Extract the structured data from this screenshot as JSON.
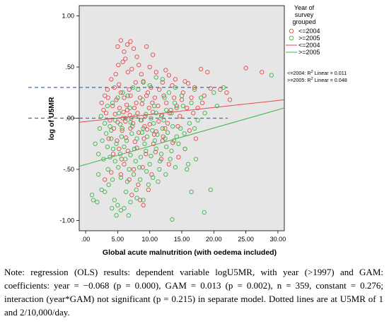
{
  "chart_data": {
    "type": "scatter",
    "xlabel": "Global acute malnutrition (with oedema included)",
    "ylabel": "log of U5MR",
    "xlim": [
      -1,
      31
    ],
    "ylim": [
      -1.1,
      1.1
    ],
    "x_ticks": [
      {
        "v": 0,
        "label": ".00"
      },
      {
        "v": 5,
        "label": "5.00"
      },
      {
        "v": 10,
        "label": "10.00"
      },
      {
        "v": 15,
        "label": "15.00"
      },
      {
        "v": 20,
        "label": "20.00"
      },
      {
        "v": 25,
        "label": "25.00"
      },
      {
        "v": 30,
        "label": "30.00"
      }
    ],
    "y_ticks": [
      {
        "v": 1,
        "label": "1.00"
      },
      {
        "v": 0.5,
        "label": ".50"
      },
      {
        "v": 0,
        "label": ".00"
      },
      {
        "v": -0.5,
        "label": "-.50"
      },
      {
        "v": -1,
        "label": "-1.00"
      }
    ],
    "legend": {
      "title": [
        "Year of",
        "survey",
        "grouped"
      ],
      "items": [
        {
          "label": "<=2004",
          "kind": "marker",
          "color": "#e8474c"
        },
        {
          "label": ">=2005",
          "kind": "marker",
          "color": "#3cb44b"
        },
        {
          "label": "<=2004",
          "kind": "line",
          "color": "#e8474c"
        },
        {
          "label": ">=2005",
          "kind": "line",
          "color": "#3cb44b"
        }
      ]
    },
    "annotations": {
      "r2_le2004": "<=2004: R",
      "r2_le2004_sup": "2",
      "r2_le2004_tail": " Linear = 0.011",
      "r2_ge2005": ">=2005: R",
      "r2_ge2005_sup": "2",
      "r2_ge2005_tail": " Linear = 0.048"
    },
    "reference_lines": [
      0.301,
      0.0
    ],
    "fit_lines": [
      {
        "name": "<=2004",
        "color": "#e8474c",
        "x": [
          -1,
          31
        ],
        "y": [
          -0.04,
          0.18
        ]
      },
      {
        "name": ">=2005",
        "color": "#3cb44b",
        "x": [
          -1,
          31
        ],
        "y": [
          -0.47,
          0.1
        ]
      }
    ],
    "series": [
      {
        "name": "<=2004",
        "color": "#e8474c",
        "points": [
          [
            5.5,
            0.76
          ],
          [
            7.0,
            0.75
          ],
          [
            6.5,
            0.72
          ],
          [
            5.0,
            0.7
          ],
          [
            7.5,
            0.68
          ],
          [
            6.0,
            0.65
          ],
          [
            9.5,
            0.7
          ],
          [
            10.5,
            0.62
          ],
          [
            8.0,
            0.6
          ],
          [
            6.2,
            0.58
          ],
          [
            5.8,
            0.55
          ],
          [
            8.3,
            0.52
          ],
          [
            10.0,
            0.5
          ],
          [
            7.2,
            0.48
          ],
          [
            11.0,
            0.45
          ],
          [
            12.5,
            0.47
          ],
          [
            13.0,
            0.42
          ],
          [
            14.0,
            0.38
          ],
          [
            15.5,
            0.36
          ],
          [
            16.0,
            0.34
          ],
          [
            18.0,
            0.48
          ],
          [
            19.0,
            0.45
          ],
          [
            25.0,
            0.49
          ],
          [
            27.5,
            0.45
          ],
          [
            21.0,
            0.28
          ],
          [
            22.0,
            0.25
          ],
          [
            17.0,
            0.3
          ],
          [
            19.5,
            0.29
          ],
          [
            22.5,
            0.18
          ],
          [
            18.5,
            0.22
          ],
          [
            13.5,
            0.32
          ],
          [
            12.0,
            0.35
          ],
          [
            4.0,
            0.38
          ],
          [
            4.5,
            0.3
          ],
          [
            5.2,
            0.33
          ],
          [
            6.8,
            0.28
          ],
          [
            7.8,
            0.35
          ],
          [
            9.0,
            0.36
          ],
          [
            10.2,
            0.3
          ],
          [
            11.5,
            0.28
          ],
          [
            3.0,
            0.22
          ],
          [
            3.5,
            0.2
          ],
          [
            4.8,
            0.18
          ],
          [
            5.5,
            0.25
          ],
          [
            6.0,
            0.2
          ],
          [
            7.0,
            0.22
          ],
          [
            8.5,
            0.2
          ],
          [
            9.5,
            0.22
          ],
          [
            10.8,
            0.2
          ],
          [
            12.2,
            0.22
          ],
          [
            13.8,
            0.2
          ],
          [
            15.0,
            0.18
          ],
          [
            16.5,
            0.2
          ],
          [
            2.5,
            0.15
          ],
          [
            4.2,
            0.12
          ],
          [
            5.3,
            0.1
          ],
          [
            6.4,
            0.13
          ],
          [
            7.6,
            0.1
          ],
          [
            8.8,
            0.14
          ],
          [
            9.9,
            0.1
          ],
          [
            11.3,
            0.12
          ],
          [
            12.6,
            0.15
          ],
          [
            14.2,
            0.12
          ],
          [
            15.8,
            0.1
          ],
          [
            3.2,
            0.05
          ],
          [
            4.6,
            0.04
          ],
          [
            5.9,
            0.06
          ],
          [
            6.9,
            0.03
          ],
          [
            8.1,
            0.05
          ],
          [
            9.3,
            0.02
          ],
          [
            10.5,
            0.06
          ],
          [
            11.9,
            0.03
          ],
          [
            13.1,
            0.05
          ],
          [
            14.7,
            0.02
          ],
          [
            3.8,
            -0.02
          ],
          [
            5.0,
            -0.04
          ],
          [
            6.2,
            -0.03
          ],
          [
            7.4,
            -0.05
          ],
          [
            8.7,
            -0.02
          ],
          [
            10.0,
            -0.06
          ],
          [
            11.4,
            -0.03
          ],
          [
            12.8,
            -0.05
          ],
          [
            4.4,
            -0.1
          ],
          [
            5.7,
            -0.12
          ],
          [
            7.0,
            -0.1
          ],
          [
            8.3,
            -0.14
          ],
          [
            9.6,
            -0.11
          ],
          [
            11.0,
            -0.13
          ],
          [
            12.4,
            -0.1
          ],
          [
            3.6,
            -0.2
          ],
          [
            4.9,
            -0.22
          ],
          [
            6.3,
            -0.19
          ],
          [
            7.7,
            -0.23
          ],
          [
            9.1,
            -0.2
          ],
          [
            10.6,
            -0.25
          ],
          [
            12.0,
            -0.22
          ],
          [
            13.6,
            -0.24
          ],
          [
            5.2,
            -0.3
          ],
          [
            6.6,
            -0.32
          ],
          [
            8.0,
            -0.29
          ],
          [
            9.4,
            -0.35
          ],
          [
            10.9,
            -0.33
          ],
          [
            6.0,
            -0.45
          ],
          [
            7.5,
            -0.5
          ],
          [
            8.9,
            -0.48
          ],
          [
            10.3,
            -0.55
          ],
          [
            6.8,
            -0.6
          ],
          [
            8.2,
            -0.65
          ],
          [
            9.8,
            -0.7
          ],
          [
            7.2,
            -0.75
          ],
          [
            5.5,
            -0.55
          ],
          [
            9.0,
            -0.85
          ],
          [
            8.5,
            -0.8
          ],
          [
            4.0,
            -0.53
          ],
          [
            3.0,
            -0.6
          ],
          [
            11.8,
            -0.4
          ],
          [
            13.0,
            -0.45
          ],
          [
            14.5,
            -0.38
          ],
          [
            15.5,
            -0.3
          ],
          [
            16.8,
            0.05
          ],
          [
            17.5,
            0.1
          ],
          [
            18.2,
            0.15
          ],
          [
            6.6,
            0.45
          ],
          [
            4.7,
            0.43
          ],
          [
            8.7,
            0.43
          ],
          [
            5.1,
            0.52
          ],
          [
            9.7,
            0.25
          ],
          [
            10.4,
            0.15
          ],
          [
            2.8,
            0.08
          ],
          [
            3.4,
            0.28
          ],
          [
            7.9,
            0.15
          ],
          [
            6.5,
            0.08
          ],
          [
            5.8,
            0.0
          ],
          [
            7.1,
            0.0
          ],
          [
            9.2,
            -0.08
          ],
          [
            10.7,
            -0.16
          ],
          [
            12.1,
            -0.18
          ],
          [
            13.3,
            0.08
          ],
          [
            14.4,
            -0.08
          ],
          [
            15.2,
            0.25
          ],
          [
            16.2,
            -0.12
          ],
          [
            17.2,
            -0.2
          ],
          [
            4.3,
            -0.35
          ],
          [
            5.6,
            -0.4
          ]
        ]
      },
      {
        "name": ">=2005",
        "color": "#3cb44b",
        "points": [
          [
            1.0,
            -0.75
          ],
          [
            1.2,
            -0.8
          ],
          [
            2.5,
            -0.7
          ],
          [
            3.0,
            -0.72
          ],
          [
            4.5,
            -0.8
          ],
          [
            5.0,
            -0.85
          ],
          [
            5.5,
            -0.9
          ],
          [
            4.8,
            -0.95
          ],
          [
            6.0,
            -0.88
          ],
          [
            7.0,
            -0.82
          ],
          [
            8.0,
            -0.78
          ],
          [
            9.0,
            -0.8
          ],
          [
            13.5,
            -0.99
          ],
          [
            18.5,
            -0.92
          ],
          [
            16.5,
            -0.72
          ],
          [
            19.5,
            -0.7
          ],
          [
            2.0,
            -0.55
          ],
          [
            3.5,
            -0.5
          ],
          [
            4.2,
            -0.6
          ],
          [
            5.5,
            -0.58
          ],
          [
            6.5,
            -0.62
          ],
          [
            7.5,
            -0.55
          ],
          [
            8.5,
            -0.6
          ],
          [
            9.5,
            -0.52
          ],
          [
            10.5,
            -0.58
          ],
          [
            11.5,
            -0.5
          ],
          [
            12.5,
            -0.55
          ],
          [
            14.0,
            -0.48
          ],
          [
            16.0,
            -0.45
          ],
          [
            2.8,
            -0.4
          ],
          [
            3.8,
            -0.38
          ],
          [
            4.6,
            -0.42
          ],
          [
            5.4,
            -0.35
          ],
          [
            6.2,
            -0.4
          ],
          [
            7.0,
            -0.36
          ],
          [
            7.8,
            -0.42
          ],
          [
            8.6,
            -0.38
          ],
          [
            9.4,
            -0.32
          ],
          [
            10.2,
            -0.37
          ],
          [
            11.0,
            -0.3
          ],
          [
            11.8,
            -0.35
          ],
          [
            12.6,
            -0.28
          ],
          [
            13.4,
            -0.32
          ],
          [
            14.5,
            -0.25
          ],
          [
            15.5,
            -0.3
          ],
          [
            1.5,
            -0.25
          ],
          [
            2.6,
            -0.22
          ],
          [
            3.4,
            -0.28
          ],
          [
            4.0,
            -0.2
          ],
          [
            4.8,
            -0.25
          ],
          [
            5.6,
            -0.18
          ],
          [
            6.4,
            -0.22
          ],
          [
            7.2,
            -0.15
          ],
          [
            8.0,
            -0.2
          ],
          [
            8.8,
            -0.14
          ],
          [
            9.6,
            -0.18
          ],
          [
            10.4,
            -0.12
          ],
          [
            11.2,
            -0.16
          ],
          [
            12.0,
            -0.1
          ],
          [
            12.8,
            -0.14
          ],
          [
            13.6,
            -0.08
          ],
          [
            14.8,
            -0.1
          ],
          [
            16.2,
            -0.05
          ],
          [
            17.5,
            -0.02
          ],
          [
            2.2,
            -0.1
          ],
          [
            3.0,
            -0.05
          ],
          [
            3.8,
            -0.08
          ],
          [
            4.6,
            -0.02
          ],
          [
            5.4,
            -0.06
          ],
          [
            6.2,
            0.0
          ],
          [
            7.0,
            -0.04
          ],
          [
            7.8,
            0.02
          ],
          [
            8.6,
            -0.02
          ],
          [
            9.4,
            0.04
          ],
          [
            10.2,
            0.0
          ],
          [
            11.0,
            0.05
          ],
          [
            11.8,
            0.02
          ],
          [
            12.6,
            0.08
          ],
          [
            13.4,
            0.05
          ],
          [
            14.2,
            0.1
          ],
          [
            15.2,
            0.12
          ],
          [
            16.5,
            0.15
          ],
          [
            18.0,
            0.2
          ],
          [
            20.0,
            0.25
          ],
          [
            21.5,
            0.3
          ],
          [
            29.0,
            0.42
          ],
          [
            3.4,
            0.12
          ],
          [
            4.2,
            0.15
          ],
          [
            5.0,
            0.2
          ],
          [
            5.8,
            0.25
          ],
          [
            6.6,
            0.22
          ],
          [
            7.4,
            0.3
          ],
          [
            8.2,
            0.28
          ],
          [
            9.0,
            0.35
          ],
          [
            10.0,
            0.32
          ],
          [
            11.0,
            0.4
          ],
          [
            12.0,
            0.38
          ],
          [
            13.0,
            0.25
          ],
          [
            14.0,
            0.3
          ],
          [
            15.0,
            0.22
          ],
          [
            17.0,
            0.28
          ],
          [
            20.5,
            0.12
          ],
          [
            2.0,
            -0.35
          ],
          [
            3.2,
            -0.15
          ],
          [
            4.3,
            -0.3
          ],
          [
            5.1,
            -0.48
          ],
          [
            6.0,
            -0.28
          ],
          [
            6.8,
            -0.5
          ],
          [
            7.6,
            -0.3
          ],
          [
            8.4,
            -0.48
          ],
          [
            9.2,
            -0.25
          ],
          [
            10.0,
            -0.45
          ],
          [
            10.8,
            -0.22
          ],
          [
            11.6,
            -0.42
          ],
          [
            12.4,
            -0.2
          ],
          [
            13.2,
            -0.4
          ],
          [
            14.2,
            -0.18
          ],
          [
            15.8,
            -0.5
          ],
          [
            17.2,
            -0.4
          ],
          [
            1.8,
            -0.82
          ],
          [
            3.6,
            -0.65
          ],
          [
            6.3,
            -0.72
          ],
          [
            5.2,
            0.05
          ],
          [
            6.9,
            0.1
          ],
          [
            8.9,
            0.18
          ],
          [
            10.7,
            0.12
          ],
          [
            12.3,
            0.2
          ],
          [
            13.9,
            0.15
          ],
          [
            2.4,
            0.02
          ],
          [
            4.0,
            -0.12
          ],
          [
            5.7,
            -0.1
          ],
          [
            7.3,
            -0.08
          ],
          [
            9.0,
            -0.1
          ],
          [
            10.6,
            -0.05
          ],
          [
            12.2,
            -0.02
          ],
          [
            13.8,
            -0.22
          ],
          [
            15.4,
            -0.15
          ],
          [
            17.0,
            -0.1
          ],
          [
            18.6,
            0.05
          ],
          [
            7.9,
            -0.7
          ],
          [
            9.8,
            -0.65
          ],
          [
            11.3,
            -0.62
          ],
          [
            4.1,
            -0.88
          ],
          [
            6.7,
            -0.95
          ]
        ]
      }
    ]
  },
  "note": "Note: regression (OLS) results: dependent variable logU5MR, with year (>1997) and GAM: coefficients: year = −0.068 (p = 0.000), GAM = 0.013 (p = 0.002), n = 359, constant = 0.276; interaction (year*GAM) not significant (p = 0.215) in separate model. Dotted lines are at U5MR of 1 and 2/10,000/day."
}
